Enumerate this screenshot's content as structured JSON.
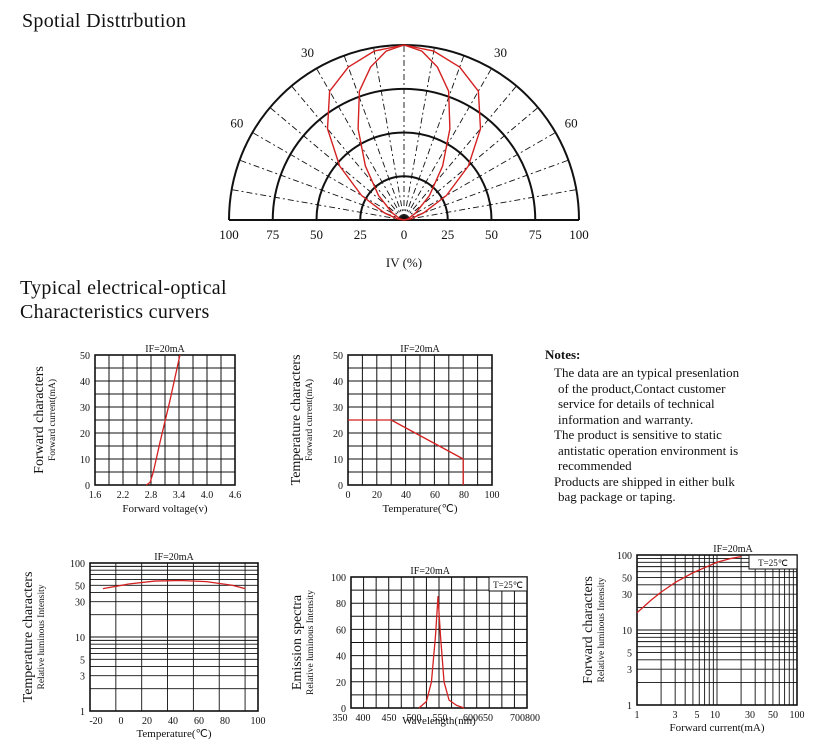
{
  "headings": {
    "spatial": "Spotial Disttrbution",
    "typical_line1": "Typical electrical-optical",
    "typical_line2": "Characteristics curvers"
  },
  "polar": {
    "angle_labels": [
      "0",
      "30",
      "30",
      "60",
      "60"
    ],
    "radial_ticks": [
      "100",
      "75",
      "50",
      "25",
      "0",
      "25",
      "50",
      "75",
      "100"
    ],
    "xlabel": "IV (%)"
  },
  "notes": {
    "title": "Notes:",
    "lines": [
      "The data are an typical presenlation",
      "of the product,Contact customer",
      "service for details of technical",
      "information and warranty.",
      "The product is sensitive to static",
      "antistatic operation environment is",
      "recommended",
      "Products are shipped in either bulk",
      "bag package or taping."
    ]
  },
  "colors": {
    "curve": "#d42020",
    "grid": "#111111"
  },
  "chart_data": [
    {
      "type": "polar",
      "title": "",
      "angles": [
        0,
        10,
        20,
        30,
        40,
        50,
        60,
        70,
        80,
        90
      ],
      "r_percent": [
        100,
        98,
        93,
        85,
        68,
        48,
        28,
        12,
        4,
        0
      ],
      "rlim": [
        0,
        100
      ],
      "rings": [
        25,
        50,
        75,
        100
      ],
      "xlabel": "IV (%)"
    },
    {
      "type": "line",
      "title": "IF=20mA",
      "xlabel": "Forward voltage(v)",
      "ylabel": "Forward characters",
      "ylabel2": "Forward current(mA)",
      "xlim": [
        1.6,
        4.6
      ],
      "ylim": [
        0,
        50
      ],
      "xticks": [
        "1.6",
        "2.2",
        "2.8",
        "3.4",
        "4.0",
        "4.6"
      ],
      "yticks": [
        "0",
        "10",
        "20",
        "30",
        "40",
        "50"
      ],
      "series": [
        {
          "x": [
            2.7,
            2.78,
            2.85,
            3.0,
            3.2,
            3.42
          ],
          "y": [
            0,
            1,
            5,
            17,
            32,
            50
          ]
        }
      ]
    },
    {
      "type": "line",
      "title": "IF=20mA",
      "xlabel": "Temperature(℃)",
      "ylabel": "Temperature characters",
      "ylabel2": "Forward current(mA)",
      "xlim": [
        0,
        100
      ],
      "ylim": [
        0,
        50
      ],
      "xticks": [
        "0",
        "20",
        "40",
        "60",
        "80",
        "100"
      ],
      "yticks": [
        "0",
        "10",
        "20",
        "30",
        "40",
        "50"
      ],
      "series": [
        {
          "x": [
            0,
            30,
            80,
            80
          ],
          "y": [
            25,
            25,
            10,
            0
          ]
        }
      ]
    },
    {
      "type": "line",
      "title": "IF=20mA",
      "xlabel": "Temperature(℃)",
      "ylabel": "Temperature characters",
      "ylabel2": "Relative luminous Intensity",
      "xlim": [
        -30,
        100
      ],
      "ylim": [
        1,
        100
      ],
      "yscale": "log",
      "xticks": [
        "-20",
        "0",
        "20",
        "40",
        "60",
        "80",
        "100"
      ],
      "yticks": [
        "1",
        "3",
        "5",
        "10",
        "30",
        "50",
        "100"
      ],
      "series": [
        {
          "x": [
            -20,
            0,
            20,
            40,
            60,
            80,
            90
          ],
          "y": [
            45,
            52,
            57,
            58,
            56,
            50,
            45
          ]
        }
      ]
    },
    {
      "type": "line",
      "title": "IF=20mA",
      "annotation": "T=25℃",
      "xlabel": "Wavelength(nm)",
      "ylabel": "Emission spectra",
      "ylabel2": "Relative luminous Intensity",
      "xlim": [
        350,
        700
      ],
      "ylim": [
        0,
        100
      ],
      "xticks": [
        "350",
        "400",
        "450",
        "500",
        "550",
        "600650",
        "700800"
      ],
      "yticks": [
        "0",
        "20",
        "40",
        "60",
        "80",
        "100"
      ],
      "series": [
        {
          "x": [
            485,
            500,
            510,
            518,
            523,
            528,
            535,
            545,
            560,
            575
          ],
          "y": [
            0,
            5,
            20,
            55,
            85,
            55,
            20,
            6,
            2,
            0
          ]
        }
      ]
    },
    {
      "type": "line",
      "title": "IF=20mA",
      "annotation": "T=25℃",
      "xlabel": "Forward current(mA)",
      "ylabel": "Forward characters",
      "ylabel2": "Relative luminous Intensity",
      "xlim": [
        1,
        100
      ],
      "ylim": [
        1,
        100
      ],
      "xscale": "log",
      "yscale": "log",
      "xticks": [
        "1",
        "3",
        "5",
        "10",
        "30",
        "50",
        "100"
      ],
      "yticks": [
        "1",
        "3",
        "5",
        "10",
        "30",
        "50",
        "100"
      ],
      "series": [
        {
          "x": [
            1,
            1.5,
            2,
            3,
            5,
            8,
            10,
            15,
            20
          ],
          "y": [
            17,
            25,
            32,
            43,
            58,
            72,
            80,
            90,
            95
          ]
        }
      ]
    }
  ]
}
